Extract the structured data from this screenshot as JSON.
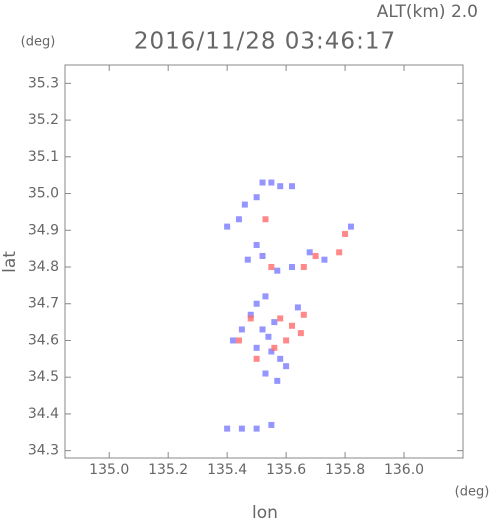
{
  "chart_data": {
    "type": "scatter",
    "title": "2016/11/28 03:46:17",
    "subtitle": "ALT(km) 2.0",
    "y_unit": "(deg)",
    "x_unit": "(deg)",
    "x_label": "lon",
    "y_label": "lat",
    "xlim": [
      134.85,
      136.2
    ],
    "ylim": [
      34.28,
      35.35
    ],
    "xticks": [
      {
        "value": 135,
        "label": "135.0"
      },
      135.2,
      135.4,
      135.6,
      135.8,
      {
        "value": 136,
        "label": "136.0"
      }
    ],
    "yticks": [
      34.3,
      34.4,
      34.5,
      34.6,
      34.7,
      34.8,
      34.9,
      {
        "value": 35,
        "label": "35.0"
      },
      35.1,
      35.2,
      35.3
    ],
    "series": [
      {
        "color": "#7a7aff",
        "x": [
          135.52,
          135.55,
          135.58,
          135.62,
          135.5,
          135.46,
          135.44,
          135.4,
          135.5,
          135.47,
          135.52,
          135.57,
          135.62,
          135.68,
          135.73,
          135.82,
          135.5,
          135.53,
          135.48,
          135.52,
          135.5,
          135.55,
          135.58,
          135.53,
          135.57,
          135.6,
          135.45,
          135.42,
          135.4,
          135.45,
          135.5,
          135.55,
          135.64,
          135.56,
          135.54
        ],
        "values": [
          35.03,
          35.03,
          35.02,
          35.02,
          34.99,
          34.97,
          34.93,
          34.91,
          34.86,
          34.82,
          34.83,
          34.79,
          34.8,
          34.84,
          34.82,
          34.91,
          34.7,
          34.72,
          34.67,
          34.63,
          34.58,
          34.57,
          34.55,
          34.51,
          34.49,
          34.53,
          34.63,
          34.6,
          34.36,
          34.36,
          34.36,
          34.37,
          34.69,
          34.65,
          34.61
        ]
      },
      {
        "color": "#ff6a6a",
        "x": [
          135.53,
          135.66,
          135.7,
          135.78,
          135.8,
          135.55,
          135.48,
          135.58,
          135.62,
          135.65,
          135.6,
          135.56,
          135.66,
          135.44,
          135.5
        ],
        "values": [
          34.93,
          34.8,
          34.83,
          34.84,
          34.89,
          34.8,
          34.66,
          34.66,
          34.64,
          34.62,
          34.6,
          34.58,
          34.67,
          34.6,
          34.55
        ]
      }
    ]
  }
}
